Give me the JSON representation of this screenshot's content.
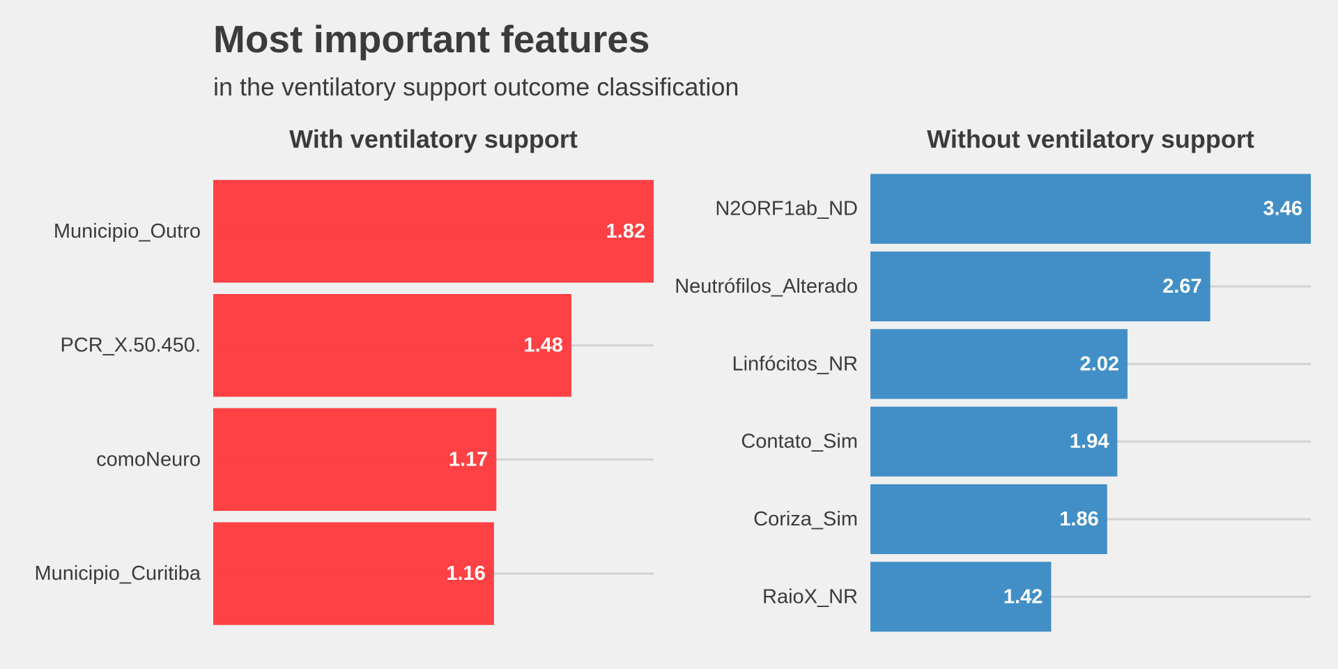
{
  "chart_data": [
    {
      "type": "bar",
      "orientation": "horizontal",
      "title": "With ventilatory support",
      "color": "#fd3b3e",
      "categories": [
        "Municipio_Outro",
        "PCR_X.50.450.",
        "comoNeuro",
        "Municipio_Curitiba"
      ],
      "values": [
        1.82,
        1.48,
        1.17,
        1.16
      ],
      "value_labels": [
        "1.82",
        "1.48",
        "1.17",
        "1.16"
      ],
      "xlim": [
        0,
        1.82
      ],
      "grid": true
    },
    {
      "type": "bar",
      "orientation": "horizontal",
      "title": "Without ventilatory support",
      "color": "#3b8bc4",
      "categories": [
        "N2ORF1ab_ND",
        "Neutrófilos_Alterado",
        "Linfócitos_NR",
        "Contato_Sim",
        "Coriza_Sim",
        "RaioX_NR"
      ],
      "values": [
        3.46,
        2.67,
        2.02,
        1.94,
        1.86,
        1.42
      ],
      "value_labels": [
        "3.46",
        "2.67",
        "2.02",
        "1.94",
        "1.86",
        "1.42"
      ],
      "xlim": [
        0,
        3.46
      ],
      "grid": true
    }
  ],
  "header": {
    "title": "Most important features",
    "subtitle": "in the ventilatory support outcome classification"
  }
}
